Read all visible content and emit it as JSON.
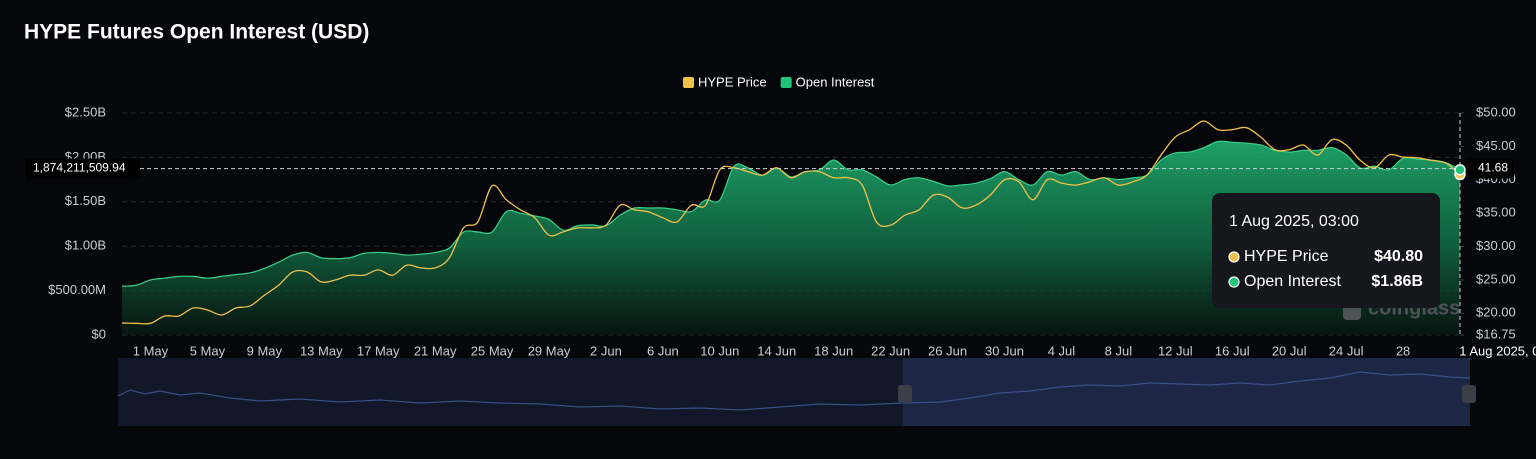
{
  "chart_data": {
    "type": "area-line",
    "title": "HYPE Futures Open Interest (USD)",
    "watermark": "coinglass",
    "legend": "top",
    "grid": true,
    "categories": [
      null,
      null,
      "1 May",
      null,
      null,
      null,
      "5 May",
      null,
      null,
      null,
      "9 May",
      null,
      null,
      null,
      "13 May",
      null,
      null,
      null,
      "17 May",
      null,
      null,
      null,
      "21 May",
      null,
      null,
      null,
      "25 May",
      null,
      null,
      null,
      "29 May",
      null,
      null,
      null,
      "2 Jun",
      null,
      null,
      null,
      "6 Jun",
      null,
      null,
      null,
      "10 Jun",
      null,
      null,
      null,
      "14 Jun",
      null,
      null,
      null,
      "18 Jun",
      null,
      null,
      null,
      "22 Jun",
      null,
      null,
      null,
      "26 Jun",
      null,
      null,
      null,
      "30 Jun",
      null,
      null,
      null,
      "4 Jul",
      null,
      null,
      null,
      "8 Jul",
      null,
      null,
      null,
      "12 Jul",
      null,
      null,
      null,
      "16 Jul",
      null,
      null,
      null,
      "20 Jul",
      null,
      null,
      null,
      "24 Jul",
      null,
      null,
      null,
      "28",
      null,
      null,
      null,
      "1 Aug 2025, 03:00"
    ],
    "series": [
      {
        "name": "HYPE Price",
        "color": "#f0c04a",
        "axis": "y2",
        "values": [
          18.55,
          18.5,
          18.5,
          19.6,
          19.6,
          20.8,
          20.5,
          19.75,
          20.8,
          21.1,
          22.7,
          24.2,
          26.2,
          26.2,
          24.7,
          25.0,
          25.7,
          25.7,
          26.5,
          25.7,
          27.2,
          26.8,
          26.8,
          28.3,
          32.8,
          33.7,
          39.1,
          37.0,
          35.5,
          34.3,
          31.7,
          32.2,
          32.8,
          32.8,
          33.2,
          36.2,
          35.5,
          35.2,
          34.3,
          33.7,
          36.2,
          36.2,
          41.5,
          41.8,
          41.2,
          40.7,
          41.8,
          40.3,
          41.2,
          41.2,
          40.3,
          40.3,
          39.2,
          33.7,
          33.2,
          34.7,
          35.5,
          37.7,
          37.4,
          35.8,
          36.2,
          37.7,
          40.0,
          39.7,
          37.0,
          40.0,
          39.5,
          39.2,
          39.7,
          40.3,
          39.2,
          39.7,
          40.7,
          43.7,
          46.4,
          47.5,
          48.8,
          47.5,
          47.5,
          47.8,
          46.4,
          44.5,
          44.5,
          45.2,
          43.7,
          46.0,
          45.2,
          42.9,
          41.8,
          43.7,
          43.4,
          43.3,
          42.9,
          42.5,
          40.8
        ],
        "value_labels": [
          null,
          null,
          null,
          null,
          null,
          null,
          null,
          null,
          null,
          null,
          null,
          null,
          null,
          null,
          null,
          null,
          null,
          null,
          null,
          null,
          null,
          null,
          null,
          null,
          null,
          null,
          null,
          null,
          null,
          null,
          null,
          null,
          null,
          null,
          null,
          null,
          null,
          null,
          null,
          null,
          null,
          null,
          null,
          null,
          null,
          null,
          null,
          null,
          null,
          null,
          null,
          null,
          null,
          null,
          null,
          null,
          null,
          null,
          null,
          null,
          null,
          null,
          null,
          null,
          null,
          null,
          null,
          null,
          null,
          null,
          null,
          null,
          null,
          null,
          null,
          null,
          null,
          null,
          null,
          null,
          null,
          null,
          null,
          null,
          null,
          null,
          null,
          null,
          null,
          null,
          null,
          null,
          null,
          null,
          "$40.80"
        ]
      },
      {
        "name": "Open Interest",
        "color": "#22c47a",
        "values": [
          550000000.0,
          560000000.0,
          620000000.0,
          640000000.0,
          660000000.0,
          660000000.0,
          640000000.0,
          660000000.0,
          680000000.0,
          700000000.0,
          750000000.0,
          820000000.0,
          900000000.0,
          930000000.0,
          870000000.0,
          860000000.0,
          870000000.0,
          920000000.0,
          930000000.0,
          920000000.0,
          900000000.0,
          910000000.0,
          930000000.0,
          980000000.0,
          1160000000.0,
          1160000000.0,
          1160000000.0,
          1390000000.0,
          1370000000.0,
          1340000000.0,
          1300000000.0,
          1180000000.0,
          1230000000.0,
          1240000000.0,
          1230000000.0,
          1350000000.0,
          1430000000.0,
          1430000000.0,
          1430000000.0,
          1410000000.0,
          1390000000.0,
          1520000000.0,
          1520000000.0,
          1900000000.0,
          1880000000.0,
          1800000000.0,
          1880000000.0,
          1780000000.0,
          1840000000.0,
          1860000000.0,
          1970000000.0,
          1860000000.0,
          1860000000.0,
          1780000000.0,
          1690000000.0,
          1750000000.0,
          1770000000.0,
          1730000000.0,
          1680000000.0,
          1690000000.0,
          1710000000.0,
          1760000000.0,
          1840000000.0,
          1750000000.0,
          1690000000.0,
          1840000000.0,
          1800000000.0,
          1840000000.0,
          1750000000.0,
          1770000000.0,
          1750000000.0,
          1770000000.0,
          1800000000.0,
          1970000000.0,
          2050000000.0,
          2060000000.0,
          2110000000.0,
          2180000000.0,
          2170000000.0,
          2160000000.0,
          2140000000.0,
          2080000000.0,
          2060000000.0,
          2080000000.0,
          2080000000.0,
          2110000000.0,
          2030000000.0,
          1880000000.0,
          1900000000.0,
          1860000000.0,
          1990000000.0,
          1980000000.0,
          1970000000.0,
          1940000000.0,
          1860000000.0
        ],
        "value_labels": [
          null,
          null,
          null,
          null,
          null,
          null,
          null,
          null,
          null,
          null,
          null,
          null,
          null,
          null,
          null,
          null,
          null,
          null,
          null,
          null,
          null,
          null,
          null,
          null,
          null,
          null,
          null,
          null,
          null,
          null,
          null,
          null,
          null,
          null,
          null,
          null,
          null,
          null,
          null,
          null,
          null,
          null,
          null,
          null,
          null,
          null,
          null,
          null,
          null,
          null,
          null,
          null,
          null,
          null,
          null,
          null,
          null,
          null,
          null,
          null,
          null,
          null,
          null,
          null,
          null,
          null,
          null,
          null,
          null,
          null,
          null,
          null,
          null,
          null,
          null,
          null,
          null,
          null,
          null,
          null,
          null,
          null,
          null,
          null,
          null,
          null,
          null,
          null,
          null,
          null,
          null,
          null,
          null,
          null,
          "$1.86B"
        ]
      }
    ],
    "ylim": [
      0,
      2500000000
    ],
    "yticks": [
      {
        "value": 0,
        "label": "$0"
      },
      {
        "value": 500000000,
        "label": "$500.00M"
      },
      {
        "value": 1000000000,
        "label": "$1.00B"
      },
      {
        "value": 1500000000,
        "label": "$1.50B"
      },
      {
        "value": 2000000000,
        "label": "$2.00B"
      },
      {
        "value": 2500000000,
        "label": "$2.50B"
      }
    ],
    "y2lim": [
      16.75,
      50
    ],
    "y2ticks": [
      {
        "value": 16.75,
        "label": "$16.75"
      },
      {
        "value": 20,
        "label": "$20.00"
      },
      {
        "value": 25,
        "label": "$25.00"
      },
      {
        "value": 30,
        "label": "$30.00"
      },
      {
        "value": 35,
        "label": "$35.00"
      },
      {
        "value": 40,
        "label": "$40.00"
      },
      {
        "value": 45,
        "label": "$45.00"
      },
      {
        "value": 50,
        "label": "$50.00"
      }
    ],
    "crosshair": {
      "y": {
        "value": 1874211509.94,
        "label": "1,874,211,509.94"
      },
      "y2": 41.68
    }
  }
}
